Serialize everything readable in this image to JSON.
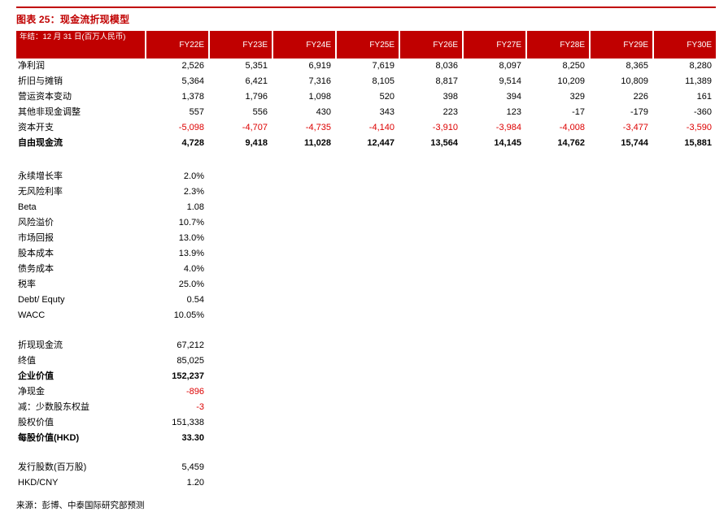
{
  "page": {
    "title": "图表 25：现金流折现模型",
    "source": "来源：彭博、中泰国际研究部预测",
    "accent_color": "#c00000",
    "negative_color": "#dd0000"
  },
  "table": {
    "header_label": "年结：12 月 31 日(百万人民币)",
    "columns": [
      "FY22E",
      "FY23E",
      "FY24E",
      "FY25E",
      "FY26E",
      "FY27E",
      "FY28E",
      "FY29E",
      "FY30E"
    ],
    "rows": [
      {
        "label": "净利润",
        "style": "normal",
        "values": [
          "2,526",
          "5,351",
          "6,919",
          "7,619",
          "8,036",
          "8,097",
          "8,250",
          "8,365",
          "8,280"
        ]
      },
      {
        "label": "折旧与摊销",
        "style": "normal",
        "values": [
          "5,364",
          "6,421",
          "7,316",
          "8,105",
          "8,817",
          "9,514",
          "10,209",
          "10,809",
          "11,389"
        ]
      },
      {
        "label": "营运资本变动",
        "style": "normal",
        "values": [
          "1,378",
          "1,796",
          "1,098",
          "520",
          "398",
          "394",
          "329",
          "226",
          "161"
        ]
      },
      {
        "label": "其他非现金调整",
        "style": "normal",
        "values": [
          "557",
          "556",
          "430",
          "343",
          "223",
          "123",
          "-17",
          "-179",
          "-360"
        ]
      },
      {
        "label": "资本开支",
        "style": "red-values",
        "values": [
          "-5,098",
          "-4,707",
          "-4,735",
          "-4,140",
          "-3,910",
          "-3,984",
          "-4,008",
          "-3,477",
          "-3,590"
        ]
      },
      {
        "label": "自由现金流",
        "style": "bold",
        "values": [
          "4,728",
          "9,418",
          "11,028",
          "12,447",
          "13,564",
          "14,145",
          "14,762",
          "15,744",
          "15,881"
        ]
      }
    ]
  },
  "assumptions": [
    {
      "label": "永续增长率",
      "value": "2.0%",
      "style": "normal"
    },
    {
      "label": "无风险利率",
      "value": "2.3%",
      "style": "normal"
    },
    {
      "label": "Beta",
      "value": "1.08",
      "style": "normal"
    },
    {
      "label": "风险溢价",
      "value": "10.7%",
      "style": "normal"
    },
    {
      "label": "市场回报",
      "value": "13.0%",
      "style": "normal"
    },
    {
      "label": "股本成本",
      "value": "13.9%",
      "style": "normal"
    },
    {
      "label": "债务成本",
      "value": "4.0%",
      "style": "normal"
    },
    {
      "label": "税率",
      "value": "25.0%",
      "style": "normal"
    },
    {
      "label": "Debt/ Equty",
      "value": "0.54",
      "style": "normal"
    },
    {
      "label": "WACC",
      "value": "10.05%",
      "style": "normal"
    }
  ],
  "valuation": [
    {
      "label": "折现现金流",
      "value": "67,212",
      "style": "normal"
    },
    {
      "label": "终值",
      "value": "85,025",
      "style": "normal"
    },
    {
      "label": "企业价值",
      "value": "152,237",
      "style": "bold"
    },
    {
      "label": "净现金",
      "value": "-896",
      "style": "red-value"
    },
    {
      "label": "减：少数股东权益",
      "value": "-3",
      "style": "red-value"
    },
    {
      "label": "股权价值",
      "value": "151,338",
      "style": "normal"
    },
    {
      "label": "每股价值(HKD)",
      "value": "33.30",
      "style": "bold"
    }
  ],
  "extras": [
    {
      "label": "发行股数(百万股)",
      "value": "5,459",
      "style": "normal"
    },
    {
      "label": "HKD/CNY",
      "value": "1.20",
      "style": "normal"
    }
  ]
}
